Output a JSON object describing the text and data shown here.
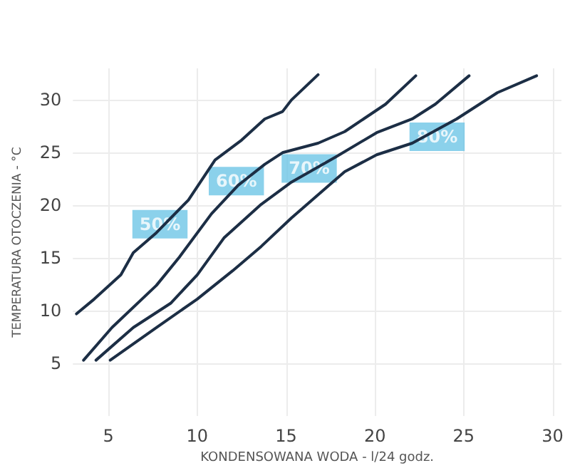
{
  "chart_data": {
    "type": "line",
    "xlabel": "KONDENSOWANA WODA - l/24 godz.",
    "ylabel": "TEMPERATURA OTOCZENIA - °C",
    "xlim": [
      3,
      30.5
    ],
    "xticks": [
      5,
      10,
      15,
      20,
      25,
      30
    ],
    "ylim": [
      0,
      33
    ],
    "yticks": [
      5,
      10,
      15,
      20,
      25,
      30
    ],
    "grid": true,
    "marker": "none",
    "line_style": "solid",
    "series": [
      {
        "color": "#1c2e45",
        "x": [
          3.2,
          4.2,
          5.7,
          6.4,
          7.7,
          9.5,
          11,
          12.5,
          13.8,
          14.8,
          15.3,
          16.8
        ],
        "values": [
          9.7,
          11.1,
          13.4,
          15.5,
          17.4,
          20.5,
          24.3,
          26.2,
          28.2,
          28.9,
          30,
          32.4
        ]
      },
      {
        "color": "#1c2e45",
        "x": [
          3.6,
          5.2,
          7.7,
          9,
          10.8,
          12.3,
          13.8,
          14.8,
          16.8,
          18.3,
          20.6,
          22.3
        ],
        "values": [
          5.3,
          8.4,
          12.4,
          15.1,
          19.2,
          21.9,
          23.9,
          25,
          25.9,
          27,
          29.6,
          32.3
        ]
      },
      {
        "color": "#1c2e45",
        "x": [
          4.3,
          6.4,
          8.5,
          10,
          11.5,
          13.6,
          15.3,
          17.8,
          20.1,
          22.1,
          23.4,
          25.3
        ],
        "values": [
          5.3,
          8.4,
          10.7,
          13.4,
          16.9,
          20.1,
          22.2,
          24.6,
          26.9,
          28.2,
          29.6,
          32.3
        ]
      },
      {
        "color": "#1c2e45",
        "x": [
          5.1,
          7.7,
          10,
          12,
          13.6,
          15.3,
          18.3,
          20.1,
          22.1,
          24.6,
          26.9,
          29.1
        ],
        "values": [
          5.3,
          8.4,
          11.1,
          13.8,
          16.1,
          18.8,
          23.2,
          24.8,
          25.9,
          28.2,
          30.7,
          32.3
        ]
      }
    ],
    "annotations": [
      {
        "text": "50%",
        "x": 7.9,
        "y": 18.2
      },
      {
        "text": "60%",
        "x": 12.2,
        "y": 22.3
      },
      {
        "text": "70%",
        "x": 16.3,
        "y": 23.5
      },
      {
        "text": "80%",
        "x": 23.5,
        "y": 26.5
      }
    ]
  }
}
